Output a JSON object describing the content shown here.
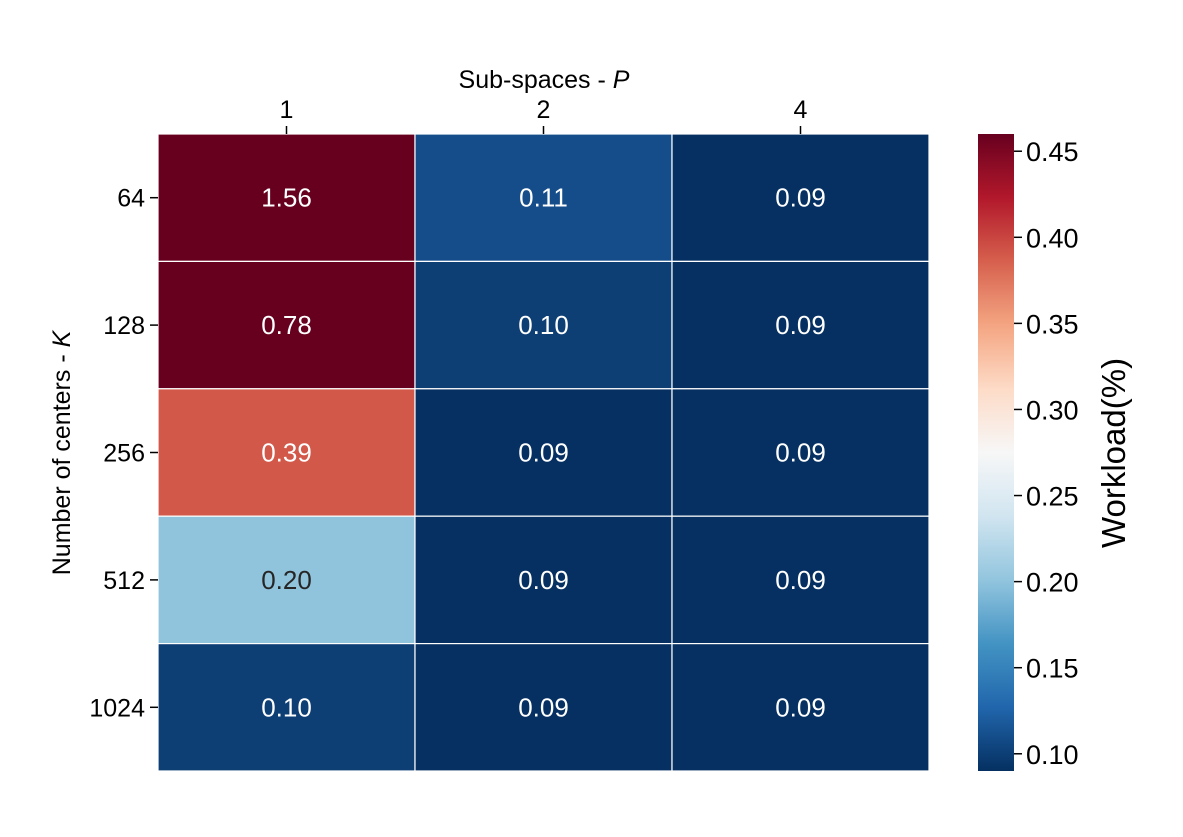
{
  "chart_data": {
    "type": "heatmap",
    "title": "",
    "xlabel": "Sub-spaces - ",
    "xlabel_var": "P",
    "ylabel": "Number of centers - ",
    "ylabel_var": "K",
    "x_categories": [
      "1",
      "2",
      "4"
    ],
    "y_categories": [
      "64",
      "128",
      "256",
      "512",
      "1024"
    ],
    "x_axis_position": "top",
    "values": [
      [
        1.56,
        0.11,
        0.09
      ],
      [
        0.78,
        0.1,
        0.09
      ],
      [
        0.39,
        0.09,
        0.09
      ],
      [
        0.2,
        0.09,
        0.09
      ],
      [
        0.1,
        0.09,
        0.09
      ]
    ],
    "cell_labels": [
      [
        "1.56",
        "0.11",
        "0.09"
      ],
      [
        "0.78",
        "0.10",
        "0.09"
      ],
      [
        "0.39",
        "0.09",
        "0.09"
      ],
      [
        "0.20",
        "0.09",
        "0.09"
      ],
      [
        "0.10",
        "0.09",
        "0.09"
      ]
    ],
    "colormap": "RdBu_r",
    "colorbar": {
      "label": "Workload(%)",
      "vmin": 0.09,
      "vmax": 0.46,
      "ticks": [
        0.1,
        0.15,
        0.2,
        0.25,
        0.3,
        0.35,
        0.4,
        0.45
      ],
      "tick_labels": [
        "0.10",
        "0.15",
        "0.20",
        "0.25",
        "0.30",
        "0.35",
        "0.40",
        "0.45"
      ],
      "placement": "right"
    },
    "grid": false,
    "cell_border_color": "#ffffff"
  }
}
